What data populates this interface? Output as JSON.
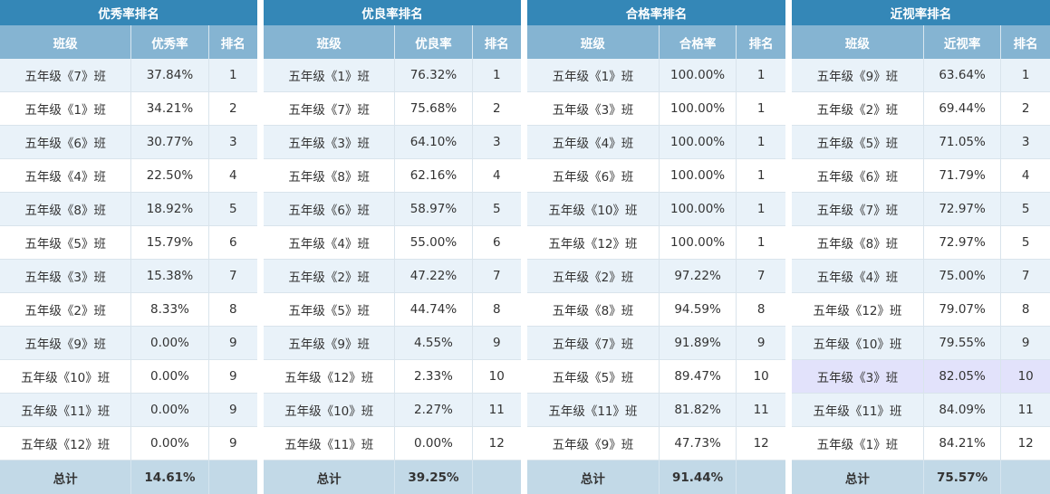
{
  "panels": [
    {
      "title": "优秀率排名",
      "headers": [
        "班级",
        "优秀率",
        "排名"
      ],
      "rows": [
        [
          "五年级《7》班",
          "37.84%",
          "1"
        ],
        [
          "五年级《1》班",
          "34.21%",
          "2"
        ],
        [
          "五年级《6》班",
          "30.77%",
          "3"
        ],
        [
          "五年级《4》班",
          "22.50%",
          "4"
        ],
        [
          "五年级《8》班",
          "18.92%",
          "5"
        ],
        [
          "五年级《5》班",
          "15.79%",
          "6"
        ],
        [
          "五年级《3》班",
          "15.38%",
          "7"
        ],
        [
          "五年级《2》班",
          "8.33%",
          "8"
        ],
        [
          "五年级《9》班",
          "0.00%",
          "9"
        ],
        [
          "五年级《10》班",
          "0.00%",
          "9"
        ],
        [
          "五年级《11》班",
          "0.00%",
          "9"
        ],
        [
          "五年级《12》班",
          "0.00%",
          "9"
        ]
      ],
      "total_label": "总计",
      "total_value": "14.61%",
      "highlight_row": -1
    },
    {
      "title": "优良率排名",
      "headers": [
        "班级",
        "优良率",
        "排名"
      ],
      "rows": [
        [
          "五年级《1》班",
          "76.32%",
          "1"
        ],
        [
          "五年级《7》班",
          "75.68%",
          "2"
        ],
        [
          "五年级《3》班",
          "64.10%",
          "3"
        ],
        [
          "五年级《8》班",
          "62.16%",
          "4"
        ],
        [
          "五年级《6》班",
          "58.97%",
          "5"
        ],
        [
          "五年级《4》班",
          "55.00%",
          "6"
        ],
        [
          "五年级《2》班",
          "47.22%",
          "7"
        ],
        [
          "五年级《5》班",
          "44.74%",
          "8"
        ],
        [
          "五年级《9》班",
          "4.55%",
          "9"
        ],
        [
          "五年级《12》班",
          "2.33%",
          "10"
        ],
        [
          "五年级《10》班",
          "2.27%",
          "11"
        ],
        [
          "五年级《11》班",
          "0.00%",
          "12"
        ]
      ],
      "total_label": "总计",
      "total_value": "39.25%",
      "highlight_row": -1
    },
    {
      "title": "合格率排名",
      "headers": [
        "班级",
        "合格率",
        "排名"
      ],
      "rows": [
        [
          "五年级《1》班",
          "100.00%",
          "1"
        ],
        [
          "五年级《3》班",
          "100.00%",
          "1"
        ],
        [
          "五年级《4》班",
          "100.00%",
          "1"
        ],
        [
          "五年级《6》班",
          "100.00%",
          "1"
        ],
        [
          "五年级《10》班",
          "100.00%",
          "1"
        ],
        [
          "五年级《12》班",
          "100.00%",
          "1"
        ],
        [
          "五年级《2》班",
          "97.22%",
          "7"
        ],
        [
          "五年级《8》班",
          "94.59%",
          "8"
        ],
        [
          "五年级《7》班",
          "91.89%",
          "9"
        ],
        [
          "五年级《5》班",
          "89.47%",
          "10"
        ],
        [
          "五年级《11》班",
          "81.82%",
          "11"
        ],
        [
          "五年级《9》班",
          "47.73%",
          "12"
        ]
      ],
      "total_label": "总计",
      "total_value": "91.44%",
      "highlight_row": -1
    },
    {
      "title": "近视率排名",
      "headers": [
        "班级",
        "近视率",
        "排名"
      ],
      "rows": [
        [
          "五年级《9》班",
          "63.64%",
          "1"
        ],
        [
          "五年级《2》班",
          "69.44%",
          "2"
        ],
        [
          "五年级《5》班",
          "71.05%",
          "3"
        ],
        [
          "五年级《6》班",
          "71.79%",
          "4"
        ],
        [
          "五年级《7》班",
          "72.97%",
          "5"
        ],
        [
          "五年级《8》班",
          "72.97%",
          "5"
        ],
        [
          "五年级《4》班",
          "75.00%",
          "7"
        ],
        [
          "五年级《12》班",
          "79.07%",
          "8"
        ],
        [
          "五年级《10》班",
          "79.55%",
          "9"
        ],
        [
          "五年级《3》班",
          "82.05%",
          "10"
        ],
        [
          "五年级《11》班",
          "84.09%",
          "11"
        ],
        [
          "五年级《1》班",
          "84.21%",
          "12"
        ]
      ],
      "total_label": "总计",
      "total_value": "75.57%",
      "highlight_row": 9
    }
  ],
  "colors": {
    "title_bg": "#3487b7",
    "header_bg": "#85b4d2",
    "row_alt_bg": "#e9f2f9",
    "highlight_bg": "#e2e2fb",
    "total_bg": "#c2d9e7"
  }
}
